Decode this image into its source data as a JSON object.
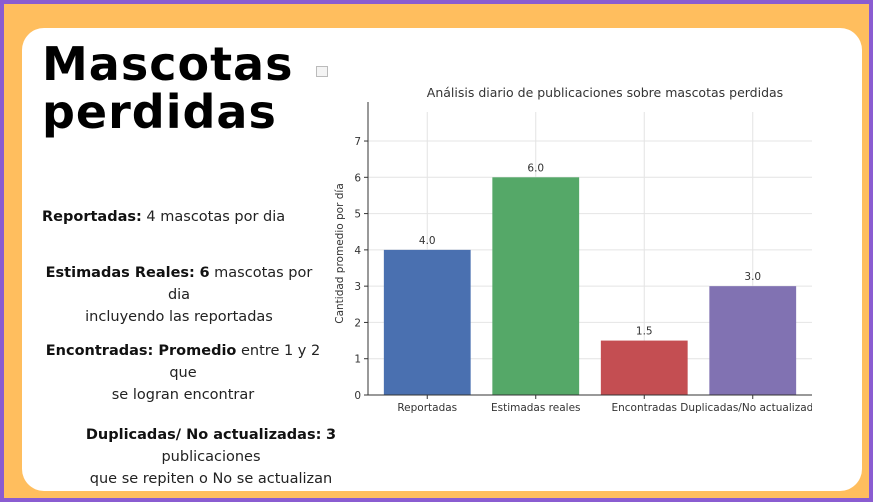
{
  "slide": {
    "title_line1": "Mascotas",
    "title_line2": "perdidas"
  },
  "stats": {
    "reportadas": {
      "label": "Reportadas:",
      "value": "4",
      "text": " mascotas por dia"
    },
    "estimadas": {
      "label": "Estimadas Reales:",
      "value": "6",
      "text": " mascotas por dia",
      "line2": "incluyendo las reportadas"
    },
    "encontradas": {
      "label": "Encontradas: Promedio",
      "text": " entre 1 y 2  que",
      "line2": "se logran encontrar"
    },
    "duplicadas": {
      "label": "Duplicadas/ No actualizadas:",
      "value": "3",
      "text": "  publicaciones",
      "line2": "que se repiten o No se actualizan"
    }
  },
  "colors": {
    "frame_border": "#8a5cd1",
    "frame_fill": "#ffbe5e",
    "card": "#ffffff"
  },
  "chart_data": {
    "type": "bar",
    "title": "Análisis diario de publicaciones sobre mascotas perdidas",
    "xlabel": "",
    "ylabel": "Cantidad promedio por día",
    "categories": [
      "Reportadas",
      "Estimadas reales",
      "Encontradas",
      "Duplicadas/No actualizadas"
    ],
    "values": [
      4.0,
      6.0,
      1.5,
      3.0
    ],
    "value_labels": [
      "4.0",
      "6.0",
      "1.5",
      "3.0"
    ],
    "colors": [
      "#4a70b0",
      "#55a868",
      "#c44e52",
      "#8172b2"
    ],
    "ylim": [
      0,
      7.8
    ],
    "yticks": [
      0,
      1,
      2,
      3,
      4,
      5,
      6,
      7
    ],
    "grid": true
  }
}
